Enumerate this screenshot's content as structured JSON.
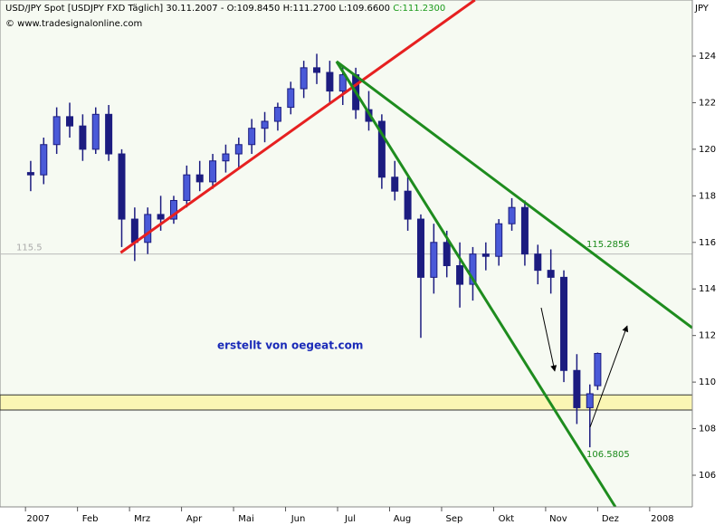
{
  "chart_data": {
    "type": "candlestick",
    "title": "USD/JPY Spot [USDJPY FXD  Täglich] 30.11.2007 - O:109.8450 H:111.2700 L:109.6600",
    "title_close": "C:111.2300",
    "subtitle": "© www.tradesignalonline.com",
    "y_axis_label": "JPY",
    "annotation": "erstellt von oegeat.com",
    "line_labels": [
      "115.2856",
      "106.5805"
    ],
    "color": "#1c1c80",
    "xlim": [
      -0.49,
      12.82
    ],
    "xticks": [
      {
        "value": 0,
        "label": "2007"
      },
      {
        "value": 1,
        "label": "Feb"
      },
      {
        "value": 2,
        "label": "Mrz"
      },
      {
        "value": 3,
        "label": "Apr"
      },
      {
        "value": 4,
        "label": "Mai"
      },
      {
        "value": 5,
        "label": "Jun"
      },
      {
        "value": 6,
        "label": "Jul"
      },
      {
        "value": 7,
        "label": "Aug"
      },
      {
        "value": 8,
        "label": "Sep"
      },
      {
        "value": 9,
        "label": "Okt"
      },
      {
        "value": 10,
        "label": "Nov"
      },
      {
        "value": 11,
        "label": "Dez"
      },
      {
        "value": 12,
        "label": "2008"
      }
    ],
    "ylim": [
      104.64,
      126.41
    ],
    "yticks": [
      106,
      108,
      110,
      112,
      114,
      116,
      118,
      120,
      122,
      124
    ],
    "x": [
      0.1,
      0.35,
      0.6,
      0.85,
      1.1,
      1.35,
      1.6,
      1.85,
      2.1,
      2.35,
      2.6,
      2.85,
      3.1,
      3.35,
      3.6,
      3.85,
      4.1,
      4.35,
      4.6,
      4.85,
      5.1,
      5.35,
      5.6,
      5.85,
      6.1,
      6.35,
      6.6,
      6.85,
      7.1,
      7.35,
      7.6,
      7.85,
      8.1,
      8.35,
      8.6,
      8.85,
      9.1,
      9.35,
      9.6,
      9.85,
      10.1,
      10.35,
      10.6,
      10.85,
      11.0
    ],
    "open": [
      119.0,
      118.9,
      120.2,
      121.4,
      121.0,
      120.0,
      121.5,
      119.8,
      117.0,
      116.0,
      117.2,
      117.0,
      117.8,
      118.9,
      118.6,
      119.5,
      119.8,
      120.2,
      120.9,
      121.2,
      121.8,
      122.6,
      123.5,
      123.3,
      122.5,
      123.2,
      121.7,
      121.2,
      118.8,
      118.2,
      117.0,
      114.5,
      116.0,
      115.0,
      114.2,
      115.5,
      115.4,
      116.8,
      117.5,
      115.5,
      114.8,
      114.5,
      110.5,
      108.9,
      109.845
    ],
    "high": [
      119.5,
      120.5,
      121.8,
      122.0,
      121.5,
      121.8,
      121.9,
      120.0,
      117.5,
      117.5,
      118.0,
      118.0,
      119.3,
      119.5,
      119.8,
      120.2,
      120.5,
      121.3,
      121.6,
      122.0,
      122.9,
      123.8,
      124.1,
      123.8,
      123.6,
      123.5,
      122.5,
      121.5,
      119.5,
      118.8,
      117.2,
      116.8,
      116.5,
      116.0,
      115.8,
      116.0,
      117.0,
      117.9,
      117.8,
      115.9,
      115.7,
      114.8,
      111.2,
      109.9,
      111.27
    ],
    "low": [
      118.2,
      118.5,
      119.8,
      120.5,
      119.5,
      119.8,
      119.5,
      115.8,
      115.2,
      115.5,
      116.5,
      116.8,
      117.5,
      118.2,
      118.3,
      119.0,
      119.2,
      119.8,
      120.3,
      120.8,
      121.5,
      122.2,
      122.8,
      122.0,
      121.9,
      121.3,
      120.8,
      118.3,
      117.8,
      116.5,
      111.9,
      113.8,
      114.5,
      113.2,
      113.5,
      114.8,
      115.0,
      116.5,
      115.0,
      114.2,
      113.8,
      110.0,
      108.2,
      107.2,
      109.66
    ],
    "close": [
      118.9,
      120.2,
      121.4,
      121.0,
      120.0,
      121.5,
      119.8,
      117.0,
      116.0,
      117.2,
      117.0,
      117.8,
      118.9,
      118.6,
      119.5,
      119.8,
      120.2,
      120.9,
      121.2,
      121.8,
      122.6,
      123.5,
      123.3,
      122.5,
      123.2,
      121.7,
      121.2,
      118.8,
      118.2,
      117.0,
      114.5,
      116.0,
      115.0,
      114.2,
      115.5,
      115.4,
      116.8,
      117.5,
      115.5,
      114.8,
      114.5,
      110.5,
      108.9,
      109.5,
      111.23
    ],
    "hline": 115.5,
    "band": [
      108.8,
      109.45
    ],
    "trendlines": [
      {
        "color": "#e62020",
        "x": [
          1.83,
          8.64
        ],
        "y": [
          115.56,
          126.41
        ]
      },
      {
        "color": "#1e8c1e",
        "x": [
          5.98,
          12.82
        ],
        "y": [
          123.77,
          112.33
        ]
      },
      {
        "color": "#1e8c1e",
        "x": [
          5.98,
          11.34
        ],
        "y": [
          123.77,
          104.64
        ]
      }
    ]
  }
}
